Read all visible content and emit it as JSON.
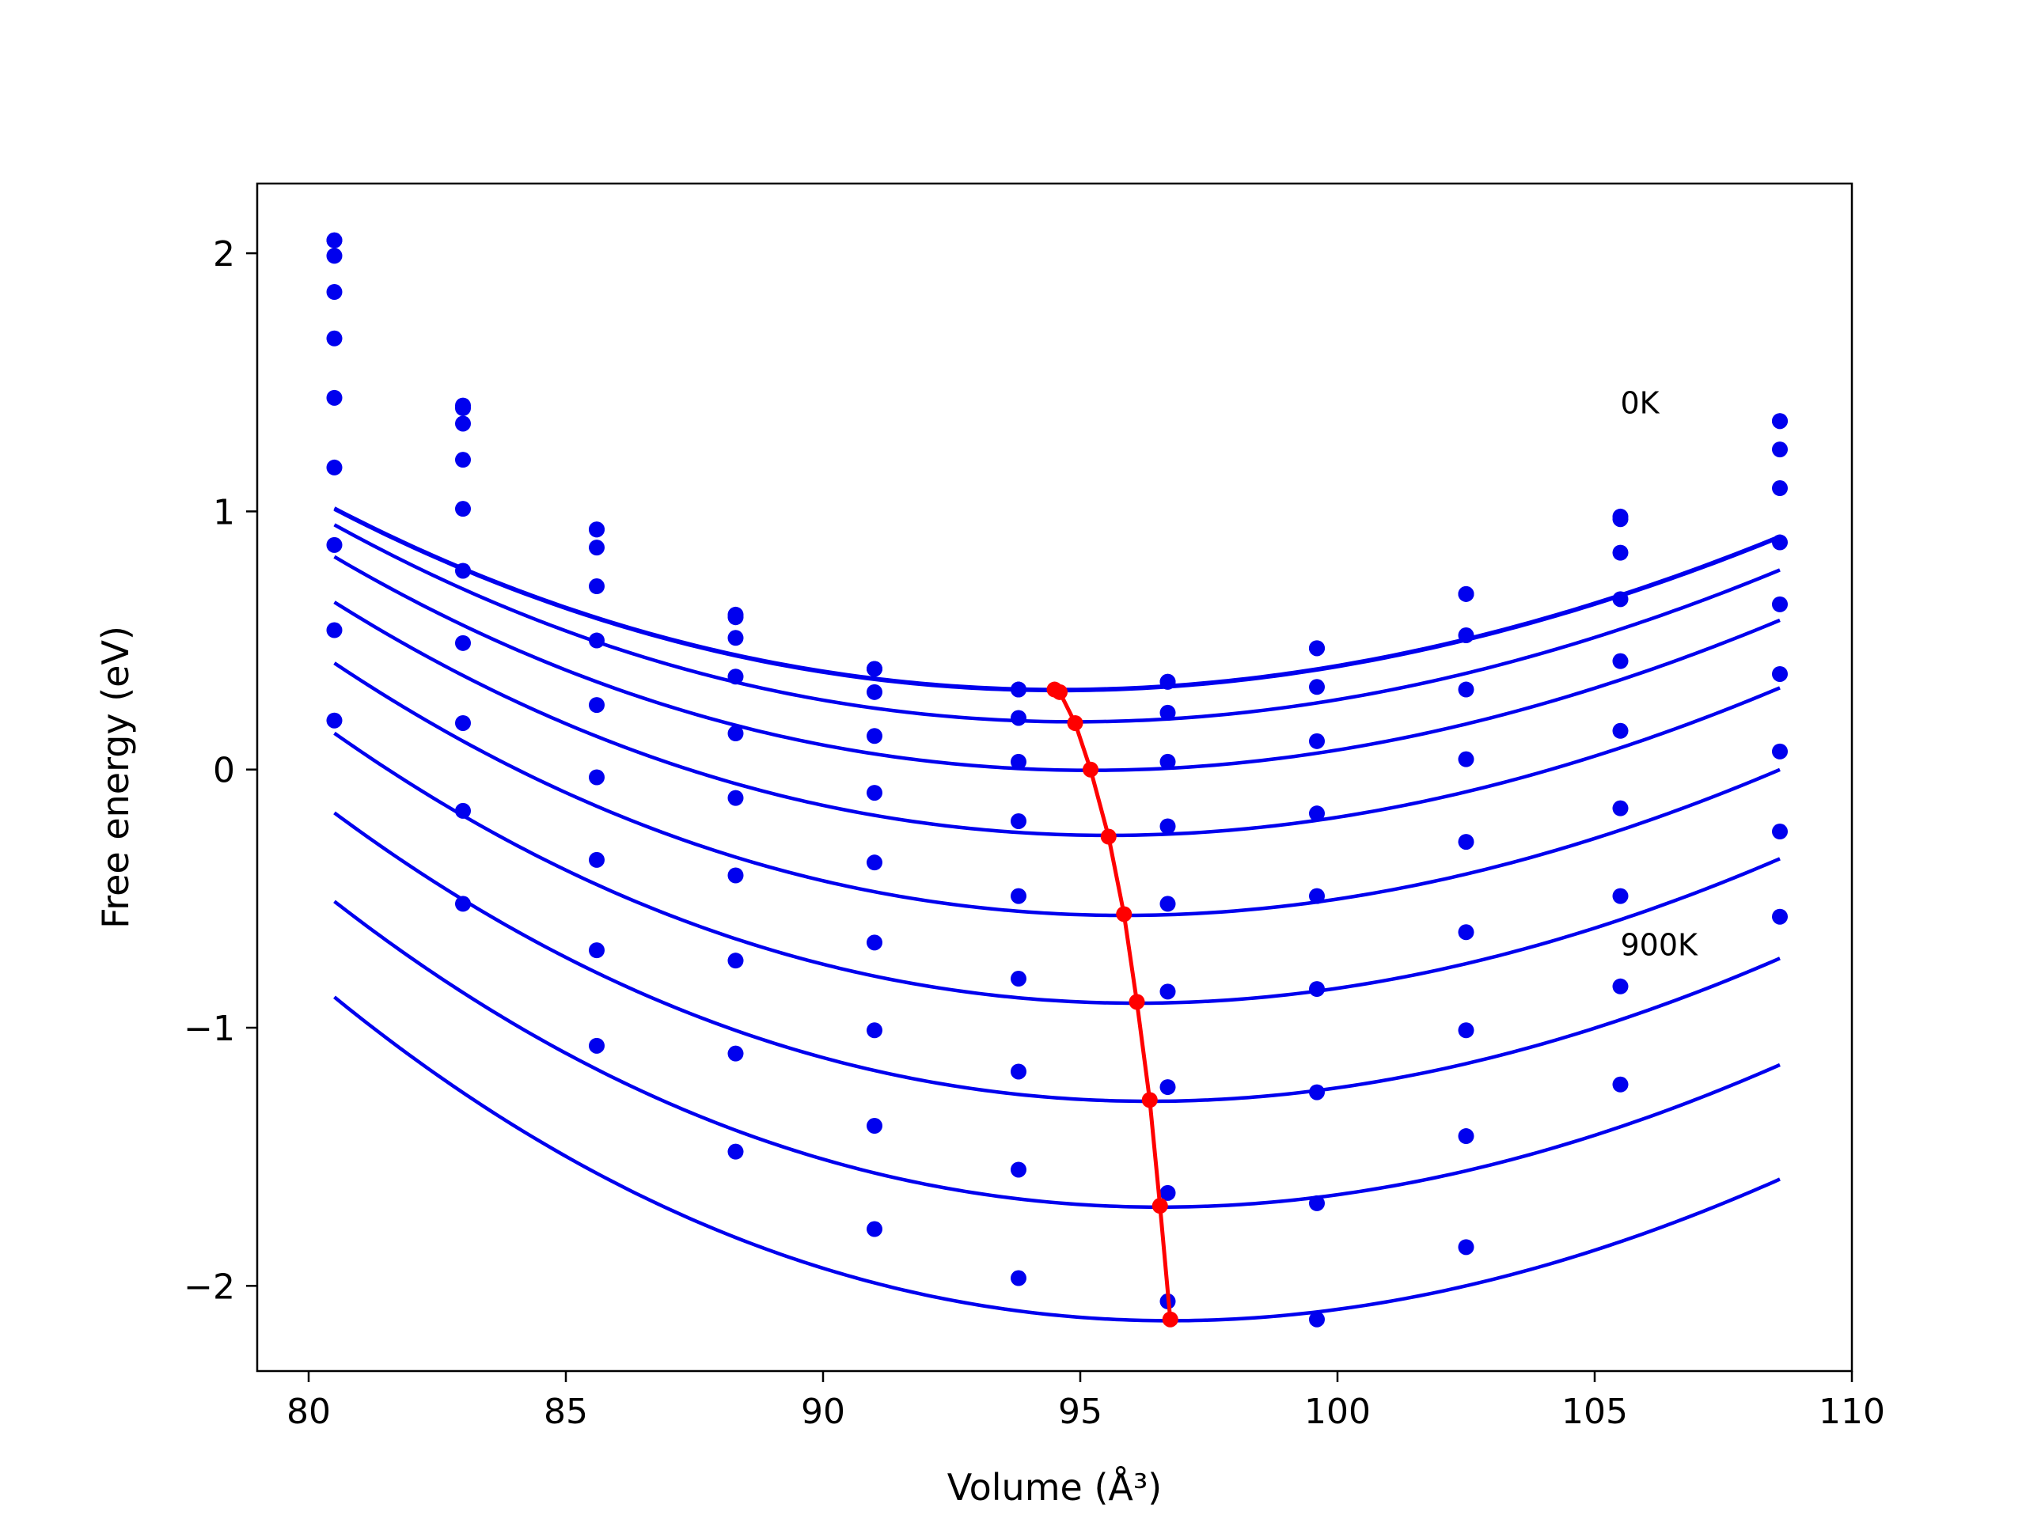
{
  "chart_data": {
    "type": "line",
    "title": "",
    "xlabel": "Volume (Å³)",
    "ylabel": "Free energy (eV)",
    "xlim": [
      79,
      110
    ],
    "ylim": [
      -2.33,
      2.27
    ],
    "x_ticks": [
      80,
      85,
      90,
      95,
      100,
      105,
      110
    ],
    "x_tick_labels": [
      "80",
      "85",
      "90",
      "95",
      "100",
      "105",
      "110"
    ],
    "y_ticks": [
      -2,
      -1,
      0,
      1,
      2
    ],
    "y_tick_labels": [
      "−2",
      "−1",
      "0",
      "1",
      "2"
    ],
    "grid": false,
    "annotations": [
      {
        "text": "0K",
        "x": 105.5,
        "y": 1.38
      },
      {
        "text": "900K",
        "x": 105.5,
        "y": -0.72
      }
    ],
    "colors": {
      "fit_curves": "#0000ee",
      "points": "#0000ee",
      "min_path": "#ff0000"
    },
    "x": [
      80.5,
      83.0,
      85.6,
      88.3,
      91.0,
      93.8,
      96.7,
      99.6,
      102.5,
      105.5,
      108.6
    ],
    "series": [
      {
        "values": [
          2.05,
          1.41,
          0.93,
          0.6,
          0.39,
          0.31,
          0.34,
          0.47,
          0.68,
          0.98,
          1.35
        ],
        "fit": {
          "v0": 94.6,
          "e0": 0.31,
          "c": 0.00328,
          "d": 1.8e-05
        }
      },
      {
        "values": [
          2.05,
          1.4,
          0.93,
          0.59,
          0.39,
          0.31,
          0.34,
          0.47,
          0.68,
          0.97,
          1.35
        ],
        "fit": {
          "v0": 94.6,
          "e0": 0.306,
          "c": 0.00328,
          "d": 1.8e-05
        }
      },
      {
        "values": [
          1.99,
          1.34,
          0.86,
          0.51,
          0.3,
          0.2,
          0.22,
          0.32,
          0.52,
          0.84,
          1.24
        ],
        "fit": {
          "v0": 94.9,
          "e0": 0.185,
          "c": 0.0034,
          "d": 1.95e-05
        }
      },
      {
        "values": [
          1.85,
          1.2,
          0.71,
          0.36,
          0.13,
          0.03,
          0.03,
          0.11,
          0.31,
          0.66,
          1.09
        ],
        "fit": {
          "v0": 95.2,
          "e0": -0.003,
          "c": 0.00352,
          "d": 2.1e-05
        }
      },
      {
        "values": [
          1.67,
          1.01,
          0.5,
          0.14,
          -0.09,
          -0.2,
          -0.22,
          -0.17,
          0.04,
          0.42,
          0.88
        ],
        "fit": {
          "v0": 95.55,
          "e0": -0.255,
          "c": 0.00365,
          "d": 2.25e-05
        }
      },
      {
        "values": [
          1.44,
          0.77,
          0.25,
          -0.11,
          -0.36,
          -0.49,
          -0.52,
          -0.49,
          -0.28,
          0.15,
          0.64
        ],
        "fit": {
          "v0": 95.85,
          "e0": -0.565,
          "c": 0.00378,
          "d": 2.4e-05
        }
      },
      {
        "values": [
          1.17,
          0.49,
          -0.03,
          -0.41,
          -0.67,
          -0.81,
          -0.86,
          -0.85,
          -0.63,
          -0.15,
          0.37
        ],
        "fit": {
          "v0": 96.1,
          "e0": -0.905,
          "c": 0.0039,
          "d": 2.55e-05
        }
      },
      {
        "values": [
          0.87,
          0.18,
          -0.35,
          -0.74,
          -1.01,
          -1.17,
          -1.23,
          -1.25,
          -1.01,
          -0.49,
          0.07
        ],
        "fit": {
          "v0": 96.35,
          "e0": -1.285,
          "c": 0.00402,
          "d": 2.7e-05
        }
      },
      {
        "values": [
          0.54,
          -0.16,
          -0.7,
          -1.1,
          -1.38,
          -1.55,
          -1.64,
          -1.68,
          -1.42,
          -0.84,
          -0.24
        ],
        "fit": {
          "v0": 96.55,
          "e0": -1.695,
          "c": 0.00414,
          "d": 2.85e-05
        }
      },
      {
        "values": [
          0.19,
          -0.52,
          -1.07,
          -1.48,
          -1.78,
          -1.97,
          -2.06,
          -2.13,
          -1.85,
          -1.22,
          -0.57
        ],
        "fit": {
          "v0": 96.75,
          "e0": -2.135,
          "c": 0.00426,
          "d": 3e-05
        }
      }
    ],
    "minimum_path": {
      "x": [
        94.5,
        94.6,
        94.9,
        95.2,
        95.55,
        95.85,
        96.1,
        96.35,
        96.55,
        96.75
      ],
      "y": [
        0.31,
        0.3,
        0.18,
        0.0,
        -0.26,
        -0.56,
        -0.9,
        -1.28,
        -1.69,
        -2.13
      ]
    }
  }
}
